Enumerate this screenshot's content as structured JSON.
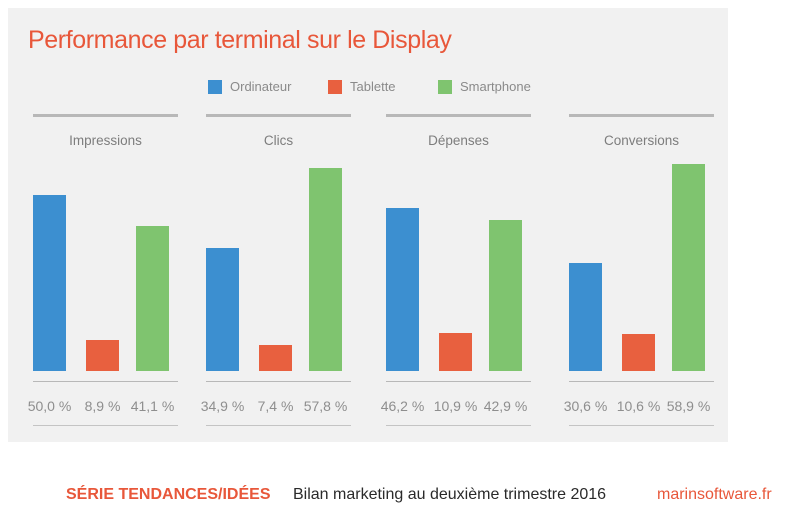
{
  "chart_data": {
    "type": "bar",
    "title": "Performance par terminal sur le Display",
    "categories": [
      "Impressions",
      "Clics",
      "Dépenses",
      "Conversions"
    ],
    "series": [
      {
        "name": "Ordinateur",
        "color": "#3c8fd0",
        "values": [
          50.0,
          34.9,
          46.2,
          30.6
        ],
        "labels": [
          "50,0 %",
          "34,9 %",
          "46,2 %",
          "30,6 %"
        ]
      },
      {
        "name": "Tablette",
        "color": "#e8603f",
        "values": [
          8.9,
          7.4,
          10.9,
          10.6
        ],
        "labels": [
          "8,9 %",
          "7,4 %",
          "10,9 %",
          "10,6 %"
        ]
      },
      {
        "name": "Smartphone",
        "color": "#7fc46f",
        "values": [
          41.1,
          57.8,
          42.9,
          58.9
        ],
        "labels": [
          "41,1 %",
          "57,8 %",
          "42,9 %",
          "58,9 %"
        ]
      }
    ],
    "legend_position": "top-center",
    "grid": false
  },
  "footer": {
    "series": "SÉRIE TENDANCES/IDÉES",
    "report": "Bilan marketing au deuxième trimestre 2016",
    "site": "marinsoftware.fr"
  }
}
